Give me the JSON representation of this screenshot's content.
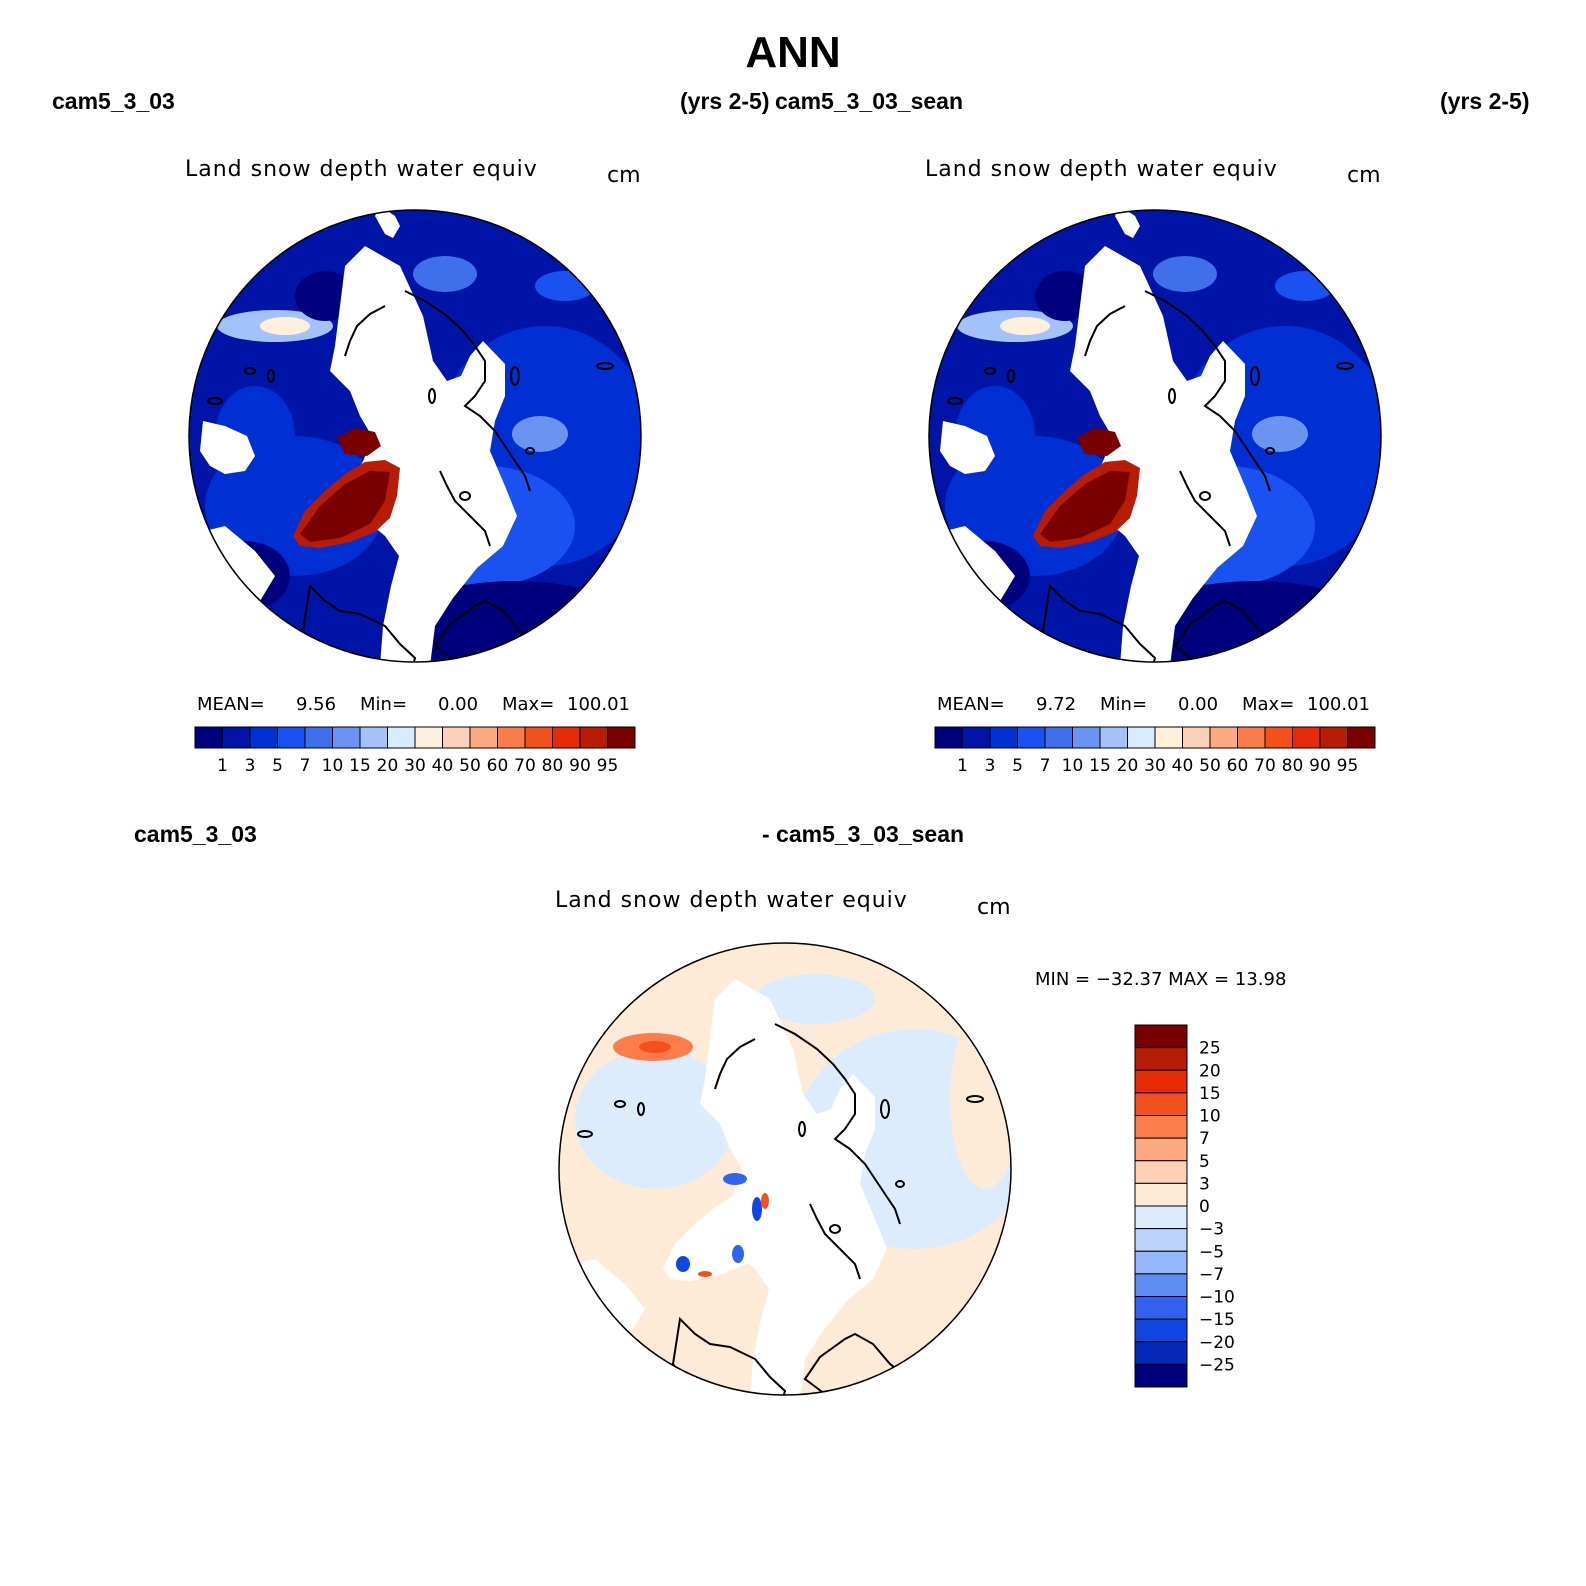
{
  "figure": {
    "title": "ANN",
    "left_case": "cam5_3_03",
    "left_years": "(yrs 2-5)",
    "right_case": "cam5_3_03_sean",
    "right_years": "(yrs 2-5)",
    "diff_left": "cam5_3_03",
    "diff_right": "- cam5_3_03_sean"
  },
  "panels": [
    {
      "variable": "Land snow depth water equiv",
      "units": "cm",
      "mean_label": "MEAN=",
      "mean": "9.56",
      "min_label": "Min=",
      "min": "0.00",
      "max_label": "Max=",
      "max": "100.01"
    },
    {
      "variable": "Land snow depth water equiv",
      "units": "cm",
      "mean_label": "MEAN=",
      "mean": "9.72",
      "min_label": "Min=",
      "min": "0.00",
      "max_label": "Max=",
      "max": "100.01"
    }
  ],
  "diff_panel": {
    "variable": "Land snow depth water equiv",
    "units": "cm",
    "min_max_text": "MIN = −32.37 MAX =   13.98"
  },
  "colors": {
    "abs_scale": [
      "#00007f",
      "#0014a8",
      "#0030d4",
      "#1a52f2",
      "#3f6fea",
      "#6b93f2",
      "#a4c2fa",
      "#d8ebff",
      "#fff0dc",
      "#fcd0b6",
      "#fbaa82",
      "#f87d4b",
      "#f4501e",
      "#e52c07",
      "#b91c04",
      "#7a0000"
    ],
    "diff_scale": [
      "#7a0000",
      "#b91c04",
      "#e52c07",
      "#f4501e",
      "#fc7d4a",
      "#fcaa82",
      "#fdd0b6",
      "#fdebd8",
      "#dcecfc",
      "#bbd3fc",
      "#94b7fb",
      "#5e8ef3",
      "#2f63f0",
      "#1246e2",
      "#0628b8",
      "#00007f"
    ]
  },
  "chart_data": [
    {
      "type": "heatmap",
      "title": "Land snow depth water equiv",
      "units": "cm",
      "projection": "north-polar-stereographic",
      "colorbar_levels": [
        1,
        3,
        5,
        7,
        10,
        15,
        20,
        30,
        40,
        50,
        60,
        70,
        80,
        90,
        95
      ],
      "colorbar_orientation": "horizontal",
      "mean": 9.56,
      "min": 0.0,
      "max": 100.01
    },
    {
      "type": "heatmap",
      "title": "Land snow depth water equiv",
      "units": "cm",
      "projection": "north-polar-stereographic",
      "colorbar_levels": [
        1,
        3,
        5,
        7,
        10,
        15,
        20,
        30,
        40,
        50,
        60,
        70,
        80,
        90,
        95
      ],
      "colorbar_orientation": "horizontal",
      "mean": 9.72,
      "min": 0.0,
      "max": 100.01
    },
    {
      "type": "heatmap",
      "title": "Land snow depth water equiv",
      "units": "cm",
      "projection": "north-polar-stereographic",
      "colorbar_levels": [
        25,
        20,
        15,
        10,
        7,
        5,
        3,
        0,
        -3,
        -5,
        -7,
        -10,
        -15,
        -20,
        -25
      ],
      "colorbar_level_labels": [
        "25",
        "20",
        "15",
        "10",
        "7",
        "5",
        "3",
        "0",
        "−3",
        "−5",
        "−7",
        "−10",
        "−15",
        "−20",
        "−25"
      ],
      "colorbar_orientation": "vertical",
      "min": -32.37,
      "max": 13.98
    }
  ]
}
